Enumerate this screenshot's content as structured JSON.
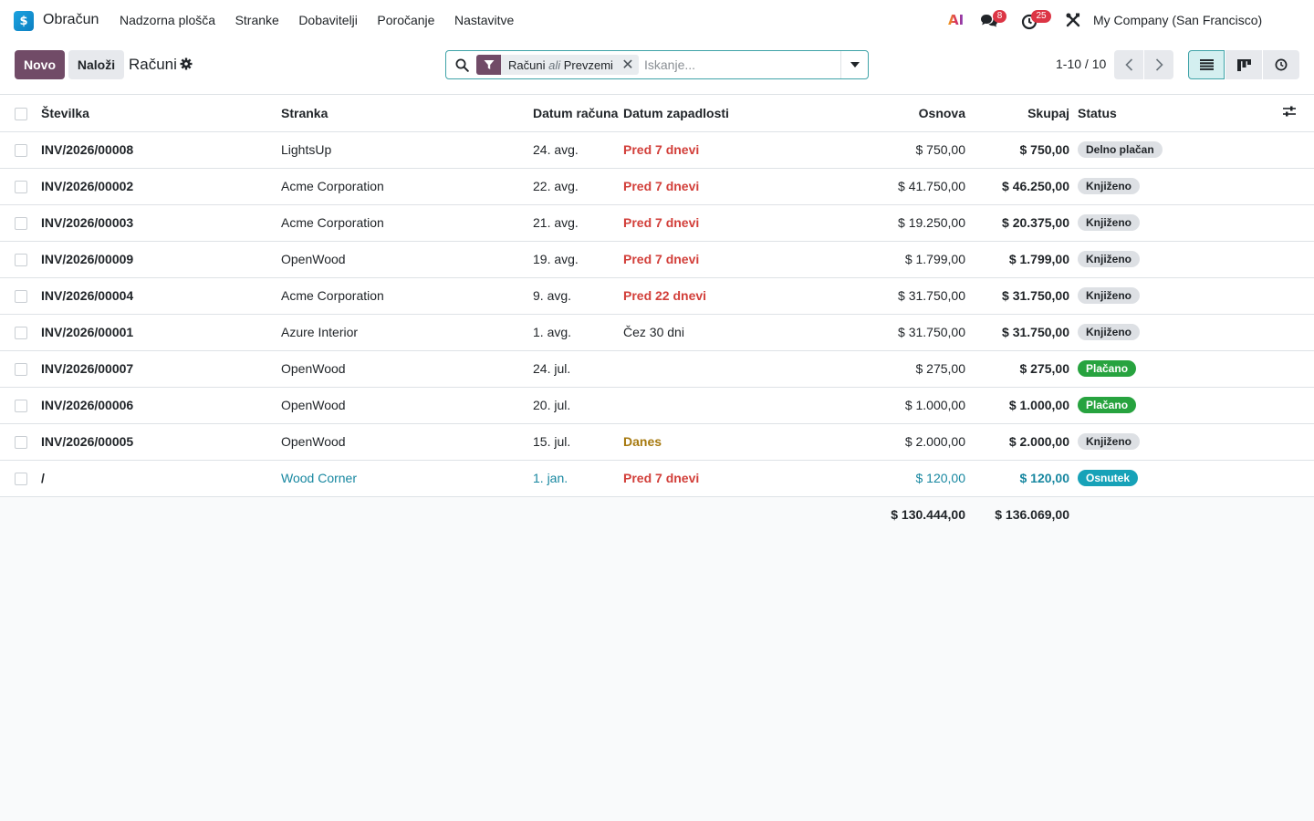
{
  "navbar": {
    "app_name": "Obračun",
    "app_icon_glyph": "$",
    "menu": [
      "Nadzorna plošča",
      "Stranke",
      "Dobavitelji",
      "Poročanje",
      "Nastavitve"
    ],
    "ai_label": "AI",
    "messages_count": "8",
    "activities_count": "25",
    "company": "My Company (San Francisco)"
  },
  "control": {
    "new_label": "Novo",
    "upload_label": "Naloži",
    "breadcrumb": "Računi",
    "facet_part1": "Računi",
    "facet_or": "ali",
    "facet_part2": "Prevzemi",
    "search_placeholder": "Iskanje...",
    "pager": "1-10 / 10"
  },
  "table": {
    "headers": {
      "number": "Številka",
      "partner": "Stranka",
      "invoice_date": "Datum računa",
      "due_date": "Datum zapadlosti",
      "untaxed": "Osnova",
      "total": "Skupaj",
      "status": "Status"
    },
    "rows": [
      {
        "number": "INV/2026/00008",
        "partner": "LightsUp",
        "invoice_date": "24. avg.",
        "due": "Pred 7 dnevi",
        "due_style": "overdue",
        "untaxed": "$ 750,00",
        "total": "$ 750,00",
        "status": "Delno plačan",
        "status_style": "grey",
        "draft": false
      },
      {
        "number": "INV/2026/00002",
        "partner": "Acme Corporation",
        "invoice_date": "22. avg.",
        "due": "Pred 7 dnevi",
        "due_style": "overdue",
        "untaxed": "$ 41.750,00",
        "total": "$ 46.250,00",
        "status": "Knjiženo",
        "status_style": "grey",
        "draft": false
      },
      {
        "number": "INV/2026/00003",
        "partner": "Acme Corporation",
        "invoice_date": "21. avg.",
        "due": "Pred 7 dnevi",
        "due_style": "overdue",
        "untaxed": "$ 19.250,00",
        "total": "$ 20.375,00",
        "status": "Knjiženo",
        "status_style": "grey",
        "draft": false
      },
      {
        "number": "INV/2026/00009",
        "partner": "OpenWood",
        "invoice_date": "19. avg.",
        "due": "Pred 7 dnevi",
        "due_style": "overdue",
        "untaxed": "$ 1.799,00",
        "total": "$ 1.799,00",
        "status": "Knjiženo",
        "status_style": "grey",
        "draft": false
      },
      {
        "number": "INV/2026/00004",
        "partner": "Acme Corporation",
        "invoice_date": "9. avg.",
        "due": "Pred 22 dnevi",
        "due_style": "overdue",
        "untaxed": "$ 31.750,00",
        "total": "$ 31.750,00",
        "status": "Knjiženo",
        "status_style": "grey",
        "draft": false
      },
      {
        "number": "INV/2026/00001",
        "partner": "Azure Interior",
        "invoice_date": "1. avg.",
        "due": "Čez 30 dni",
        "due_style": "normal",
        "untaxed": "$ 31.750,00",
        "total": "$ 31.750,00",
        "status": "Knjiženo",
        "status_style": "grey",
        "draft": false
      },
      {
        "number": "INV/2026/00007",
        "partner": "OpenWood",
        "invoice_date": "24. jul.",
        "due": "",
        "due_style": "normal",
        "untaxed": "$ 275,00",
        "total": "$ 275,00",
        "status": "Plačano",
        "status_style": "green",
        "draft": false
      },
      {
        "number": "INV/2026/00006",
        "partner": "OpenWood",
        "invoice_date": "20. jul.",
        "due": "",
        "due_style": "normal",
        "untaxed": "$ 1.000,00",
        "total": "$ 1.000,00",
        "status": "Plačano",
        "status_style": "green",
        "draft": false
      },
      {
        "number": "INV/2026/00005",
        "partner": "OpenWood",
        "invoice_date": "15. jul.",
        "due": "Danes",
        "due_style": "today",
        "untaxed": "$ 2.000,00",
        "total": "$ 2.000,00",
        "status": "Knjiženo",
        "status_style": "grey",
        "draft": false
      },
      {
        "number": "/",
        "partner": "Wood Corner",
        "invoice_date": "1. jan.",
        "due": "Pred 7 dnevi",
        "due_style": "overdue",
        "untaxed": "$ 120,00",
        "total": "$ 120,00",
        "status": "Osnutek",
        "status_style": "teal",
        "draft": true
      }
    ],
    "totals": {
      "untaxed": "$ 130.444,00",
      "total": "$ 136.069,00"
    }
  },
  "colors": {
    "primary": "#714b67",
    "accent": "#3fa3a8",
    "danger": "#d23f3a",
    "success": "#27a33f",
    "info": "#17a2b8"
  }
}
